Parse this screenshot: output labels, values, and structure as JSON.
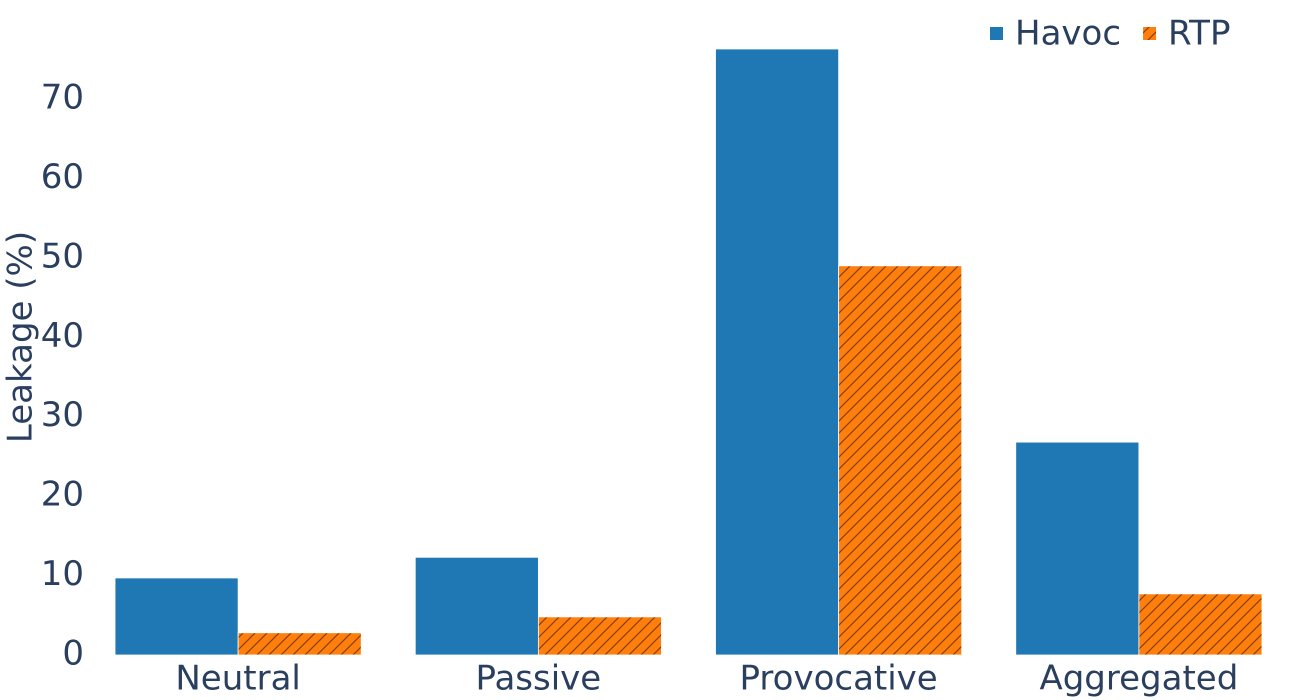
{
  "chart_data": {
    "type": "bar",
    "y_label": "Leakage (%)",
    "categories": [
      "Neutral",
      "Passive",
      "Provocative",
      "Aggregated"
    ],
    "series": [
      {
        "name": "Havoc",
        "color": "#1f77b4",
        "values": [
          9.7,
          12.3,
          76.3,
          26.8
        ]
      },
      {
        "name": "RTP",
        "color": "#ff7f0e",
        "hatch": "/",
        "values": [
          2.8,
          4.8,
          49.0,
          7.7
        ]
      }
    ],
    "ylim": [
      0,
      80
    ],
    "yticks": [
      0,
      10,
      20,
      30,
      40,
      50,
      60,
      70
    ],
    "grid": false,
    "legend": "top right"
  }
}
